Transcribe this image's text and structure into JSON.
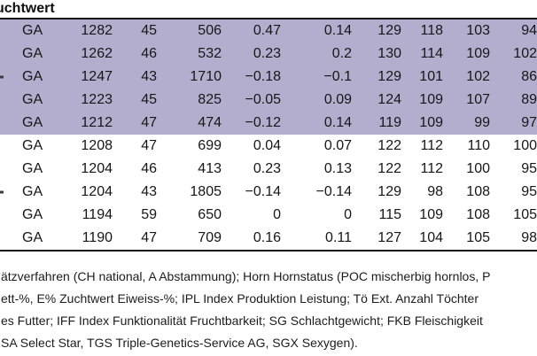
{
  "header": {
    "title": "uchtwert"
  },
  "table": {
    "rows": [
      {
        "shaded": true,
        "left_clip_mark": false,
        "cells": [
          "GA",
          "1282",
          "45",
          "506",
          "0.47",
          "0.14",
          "129",
          "118",
          "103",
          "94"
        ]
      },
      {
        "shaded": true,
        "left_clip_mark": false,
        "cells": [
          "GA",
          "1262",
          "46",
          "532",
          "0.23",
          "0.2",
          "130",
          "114",
          "109",
          "102"
        ]
      },
      {
        "shaded": true,
        "left_clip_mark": true,
        "cells": [
          "GA",
          "1247",
          "43",
          "1710",
          "−0.18",
          "−0.1",
          "129",
          "101",
          "102",
          "86"
        ]
      },
      {
        "shaded": true,
        "left_clip_mark": false,
        "cells": [
          "GA",
          "1223",
          "45",
          "825",
          "−0.05",
          "0.09",
          "124",
          "109",
          "107",
          "89"
        ]
      },
      {
        "shaded": true,
        "left_clip_mark": false,
        "cells": [
          "GA",
          "1212",
          "47",
          "474",
          "−0.12",
          "0.14",
          "119",
          "109",
          "99",
          "97"
        ]
      },
      {
        "shaded": false,
        "left_clip_mark": false,
        "cells": [
          "GA",
          "1208",
          "47",
          "699",
          "0.04",
          "0.07",
          "122",
          "112",
          "110",
          "100"
        ]
      },
      {
        "shaded": false,
        "left_clip_mark": false,
        "cells": [
          "GA",
          "1204",
          "46",
          "413",
          "0.23",
          "0.13",
          "122",
          "112",
          "100",
          "95"
        ]
      },
      {
        "shaded": false,
        "left_clip_mark": true,
        "cells": [
          "GA",
          "1204",
          "43",
          "1805",
          "−0.14",
          "−0.14",
          "129",
          "98",
          "108",
          "95"
        ]
      },
      {
        "shaded": false,
        "left_clip_mark": false,
        "cells": [
          "GA",
          "1194",
          "59",
          "650",
          "0",
          "0",
          "115",
          "109",
          "108",
          "105"
        ]
      },
      {
        "shaded": false,
        "left_clip_mark": false,
        "cells": [
          "GA",
          "1190",
          "47",
          "709",
          "0.16",
          "0.11",
          "127",
          "104",
          "105",
          "98"
        ]
      }
    ]
  },
  "footnote": {
    "lines": [
      "ätzverfahren (CH national, A Abstammung); Horn Hornstatus (POC mischerbig hornlos, P",
      "ett-%, E% Zuchtwert Eiweiss-%; IPL Index Produktion Leistung; Tö Ext. Anzahl Töchter",
      "es Futter; IFF Index Funktionalität Fruchtbarkeit; SG Schlachtgewicht; FKB Fleischigkeit",
      "SA Select Star, TGS Triple-Genetics-Service AG, SGX Sexygen)."
    ]
  },
  "colors": {
    "row_shaded": "#b4aece",
    "rule": "#141414",
    "text": "#161616"
  }
}
